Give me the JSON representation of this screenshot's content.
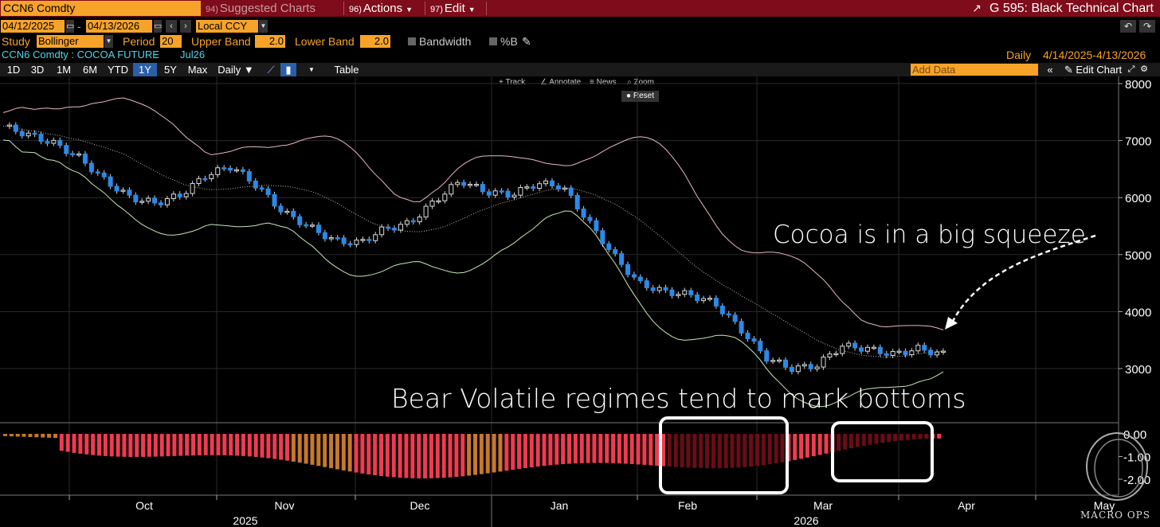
{
  "titlebar": {
    "ticker": "CCN6 Comdty",
    "suggested_num": "94)",
    "suggested": "Suggested Charts",
    "actions_num": "96)",
    "actions": "Actions",
    "edit_num": "97)",
    "edit": "Edit",
    "function_title": "G 595: Black Technical Chart"
  },
  "controls": {
    "start_date": "04/12/2025",
    "end_date": "04/13/2026",
    "date_sep": "-",
    "currency": "Local CCY",
    "study_label": "Study",
    "study_value": "Bollinger",
    "period_label": "Period",
    "period_value": "20",
    "upper_label": "Upper Band",
    "upper_value": "2.0",
    "lower_label": "Lower Band",
    "lower_value": "2.0",
    "bandwidth_label": "Bandwidth",
    "pctb_label": "%B"
  },
  "security": {
    "name": "CCN6 Comdty : COCOA FUTURE",
    "contract": "Jul26",
    "frequency": "Daily",
    "range": "4/14/2025-4/13/2026"
  },
  "toolbar": {
    "periods": [
      "1D",
      "3D",
      "1M",
      "6M",
      "YTD",
      "1Y",
      "5Y",
      "Max"
    ],
    "selected_period": "1Y",
    "frequency": "Daily",
    "table": "Table",
    "add_data": "Add Data",
    "edit_chart": "Edit Chart"
  },
  "chart_tools": {
    "track": "Track",
    "annotate": "Annotate",
    "news": "News",
    "zoom": "Zoom",
    "reset": "Reset"
  },
  "chart_data": {
    "type": "candlestick",
    "y_ticks": [
      "8000",
      "7000",
      "6000",
      "5000",
      "4000",
      "3000"
    ],
    "y_range": [
      2500,
      8000
    ],
    "lower_ticks": [
      "0.00",
      "-1.00",
      "-2.00"
    ],
    "x_months": [
      "Oct",
      "Nov",
      "Dec",
      "Jan",
      "Feb",
      "Mar",
      "Apr",
      "May"
    ],
    "x_years": [
      "2025",
      "2026"
    ],
    "price_approx": [
      7250,
      7100,
      6950,
      6700,
      6300,
      6000,
      5900,
      6050,
      6400,
      6550,
      6200,
      5750,
      5500,
      5250,
      5200,
      5450,
      5550,
      5950,
      6300,
      6100,
      6050,
      6250,
      6200,
      5600,
      5000,
      4500,
      4350,
      4300,
      4150,
      3700,
      3200,
      3000,
      3050,
      3400,
      3350,
      3250,
      3350,
      3250
    ]
  },
  "annotations": {
    "squeeze": "Cocoa is in a big squeeze",
    "regimes": "Bear Volatile regimes tend to mark bottoms"
  },
  "logo_text": "MACRO OPS"
}
